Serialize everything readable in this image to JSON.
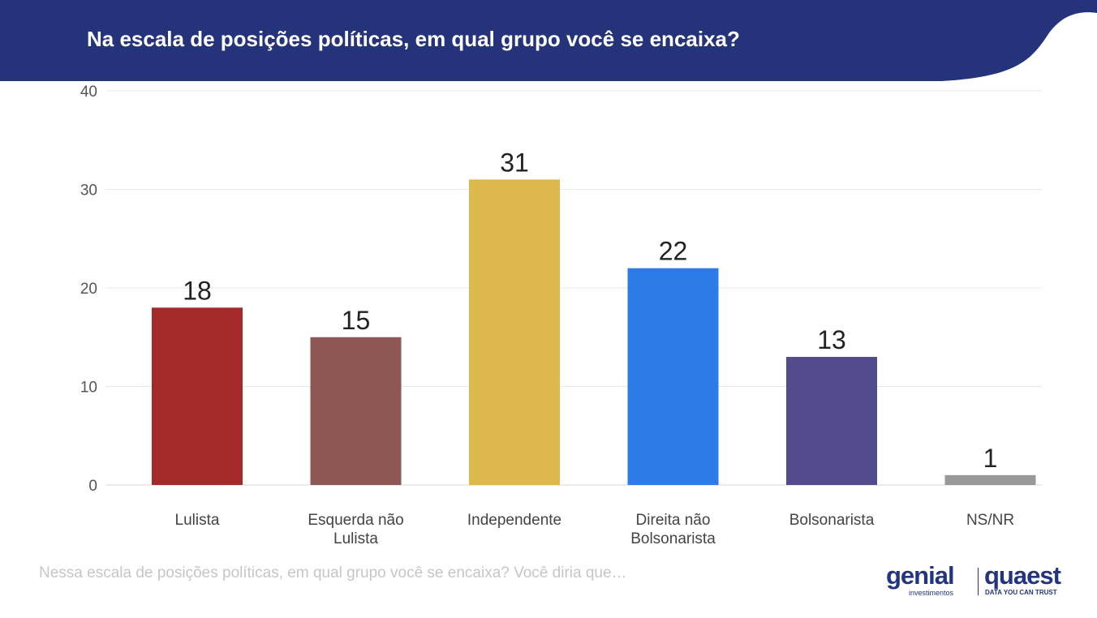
{
  "header": {
    "title": "Na escala de posições políticas, em qual grupo você se encaixa?",
    "bg_color": "#25347a"
  },
  "chart_data": {
    "type": "bar",
    "title": "Na escala de posições políticas, em qual grupo você se encaixa?",
    "categories": [
      [
        "Lulista"
      ],
      [
        "Esquerda não",
        "Lulista"
      ],
      [
        "Independente"
      ],
      [
        "Direita não",
        "Bolsonarista"
      ],
      [
        "Bolsonarista"
      ],
      [
        "NS/NR"
      ]
    ],
    "values": [
      18,
      15,
      31,
      22,
      13,
      1
    ],
    "colors": [
      "#a4292b",
      "#8f5753",
      "#ddb84f",
      "#2c7be8",
      "#524c8f",
      "#999999"
    ],
    "ylim": [
      0,
      40
    ],
    "yticks": [
      0,
      10,
      20,
      30,
      40
    ],
    "xlabel": "",
    "ylabel": "",
    "grid": true,
    "legend": "none"
  },
  "footnote": "Nessa escala de posições políticas, em qual grupo você se encaixa? Você diria que…",
  "logos": {
    "genial": "genial",
    "genial_sub": "investimentos",
    "quaest": "quaest",
    "quaest_sub": "DATA YOU CAN TRUST"
  }
}
